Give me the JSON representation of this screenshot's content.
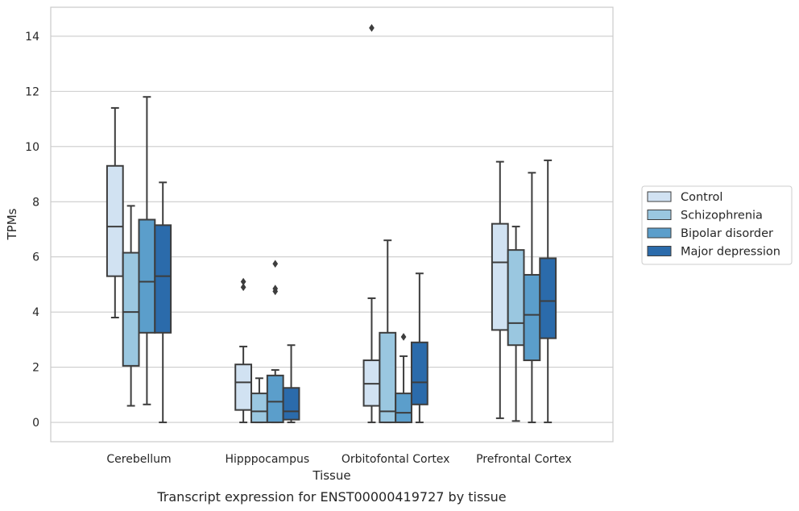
{
  "chart_data": {
    "type": "box",
    "title": "",
    "caption": "Transcript expression for ENST00000419727 by tissue",
    "xlabel": "Tissue",
    "ylabel": "TPMs",
    "ylim": [
      -0.7,
      15.05
    ],
    "yticks": [
      0,
      2,
      4,
      6,
      8,
      10,
      12,
      14
    ],
    "grid": "horizontal",
    "legend_position": "right",
    "categories": [
      "Cerebellum",
      "Hipppocampus",
      "Orbitofontal Cortex",
      "Prefrontal Cortex"
    ],
    "series": [
      {
        "name": "Control",
        "color": "#d1e2f2",
        "boxes": [
          {
            "whislo": 3.8,
            "q1": 5.3,
            "med": 7.1,
            "q3": 9.3,
            "whishi": 11.4,
            "fliers": []
          },
          {
            "whislo": 0.0,
            "q1": 0.45,
            "med": 1.45,
            "q3": 2.1,
            "whishi": 2.75,
            "fliers": [
              4.9,
              5.1
            ]
          },
          {
            "whislo": 0.0,
            "q1": 0.6,
            "med": 1.4,
            "q3": 2.25,
            "whishi": 4.5,
            "fliers": [
              14.3
            ]
          },
          {
            "whislo": 0.15,
            "q1": 3.35,
            "med": 5.8,
            "q3": 7.2,
            "whishi": 9.45,
            "fliers": []
          }
        ]
      },
      {
        "name": "Schizophrenia",
        "color": "#9ac7e0",
        "boxes": [
          {
            "whislo": 0.6,
            "q1": 2.05,
            "med": 4.0,
            "q3": 6.15,
            "whishi": 7.85,
            "fliers": []
          },
          {
            "whislo": 0.0,
            "q1": 0.0,
            "med": 0.4,
            "q3": 1.05,
            "whishi": 1.6,
            "fliers": []
          },
          {
            "whislo": 0.0,
            "q1": 0.0,
            "med": 0.4,
            "q3": 3.25,
            "whishi": 6.6,
            "fliers": []
          },
          {
            "whislo": 0.05,
            "q1": 2.8,
            "med": 3.6,
            "q3": 6.25,
            "whishi": 7.1,
            "fliers": []
          }
        ]
      },
      {
        "name": "Bipolar disorder",
        "color": "#5b9ecb",
        "boxes": [
          {
            "whislo": 0.65,
            "q1": 3.25,
            "med": 5.1,
            "q3": 7.35,
            "whishi": 11.8,
            "fliers": []
          },
          {
            "whislo": 0.0,
            "q1": 0.0,
            "med": 0.75,
            "q3": 1.7,
            "whishi": 1.9,
            "fliers": [
              4.75,
              4.85,
              5.75
            ]
          },
          {
            "whislo": 0.0,
            "q1": 0.0,
            "med": 0.35,
            "q3": 1.05,
            "whishi": 2.4,
            "fliers": [
              3.1
            ]
          },
          {
            "whislo": 0.0,
            "q1": 2.25,
            "med": 3.9,
            "q3": 5.35,
            "whishi": 9.05,
            "fliers": []
          }
        ]
      },
      {
        "name": "Major depression",
        "color": "#2b6bab",
        "boxes": [
          {
            "whislo": 0.0,
            "q1": 3.25,
            "med": 5.3,
            "q3": 7.15,
            "whishi": 8.7,
            "fliers": []
          },
          {
            "whislo": 0.0,
            "q1": 0.1,
            "med": 0.4,
            "q3": 1.25,
            "whishi": 2.8,
            "fliers": []
          },
          {
            "whislo": 0.0,
            "q1": 0.65,
            "med": 1.45,
            "q3": 2.9,
            "whishi": 5.4,
            "fliers": []
          },
          {
            "whislo": 0.0,
            "q1": 3.05,
            "med": 4.4,
            "q3": 5.95,
            "whishi": 9.5,
            "fliers": []
          }
        ]
      }
    ]
  }
}
